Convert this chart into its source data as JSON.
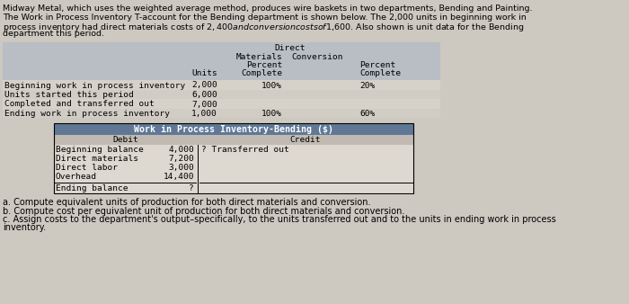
{
  "bg_color": "#cdc8c0",
  "intro_text": [
    "Midway Metal, which uses the weighted average method, produces wire baskets in two departments, Bending and Painting.",
    "The Work in Process Inventory T-account for the Bending department is shown below. The 2,000 units in beginning work in",
    "process inventory had direct materials costs of $2,400 and conversion costs of $1,600. Also shown is unit data for the Bending",
    "department this period."
  ],
  "upper_table": {
    "rows": [
      [
        "Beginning work in process inventory",
        "2,000",
        "100%",
        "20%"
      ],
      [
        "Units started this period",
        "6,000",
        "",
        ""
      ],
      [
        "Completed and transferred out",
        "7,000",
        "",
        ""
      ],
      [
        "Ending work in process inventory",
        "1,000",
        "100%",
        "60%"
      ]
    ],
    "header_bg": "#b8bec4"
  },
  "lower_table": {
    "title": "Work in Process Inventory-Bending ($)",
    "debit_label": "Debit",
    "credit_label": "Credit",
    "debit_rows": [
      [
        "Beginning balance",
        "4,000"
      ],
      [
        "Direct materials",
        "7,200"
      ],
      [
        "Direct labor",
        "3,000"
      ],
      [
        "Overhead",
        "14,400"
      ]
    ],
    "credit_text": "? Transferred out",
    "ending_row": [
      "Ending balance",
      "?"
    ],
    "header_bg": "#607896"
  },
  "footer_text": [
    "a. Compute equivalent units of production for both direct materials and conversion.",
    "b. Compute cost per equivalent unit of production for both direct materials and conversion.",
    "c. Assign costs to the department's output–specifically, to the units transferred out and to the units in ending work in process",
    "inventory."
  ]
}
